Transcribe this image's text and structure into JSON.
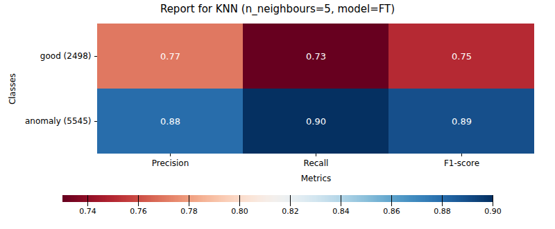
{
  "chart_data": {
    "type": "heatmap",
    "title": "Report for KNN (n_neighbours=5, model=FT)",
    "xlabel": "Metrics",
    "ylabel": "Classes",
    "x": [
      "Precision",
      "Recall",
      "F1-score"
    ],
    "y": [
      "good (2498)",
      "anomaly (5545)"
    ],
    "values": [
      [
        0.77,
        0.73,
        0.75
      ],
      [
        0.88,
        0.9,
        0.89
      ]
    ],
    "value_labels": [
      [
        "0.77",
        "0.73",
        "0.75"
      ],
      [
        "0.88",
        "0.90",
        "0.89"
      ]
    ],
    "data_labels": true,
    "color": "RdBu",
    "colorbar_range": [
      0.73,
      0.9
    ],
    "colorbar_ticks": [
      0.74,
      0.76,
      0.78,
      {
        "value": 0.8,
        "label": "0.80"
      },
      0.82,
      0.84,
      0.86,
      0.88,
      {
        "value": 0.9,
        "label": "0.90"
      }
    ]
  }
}
